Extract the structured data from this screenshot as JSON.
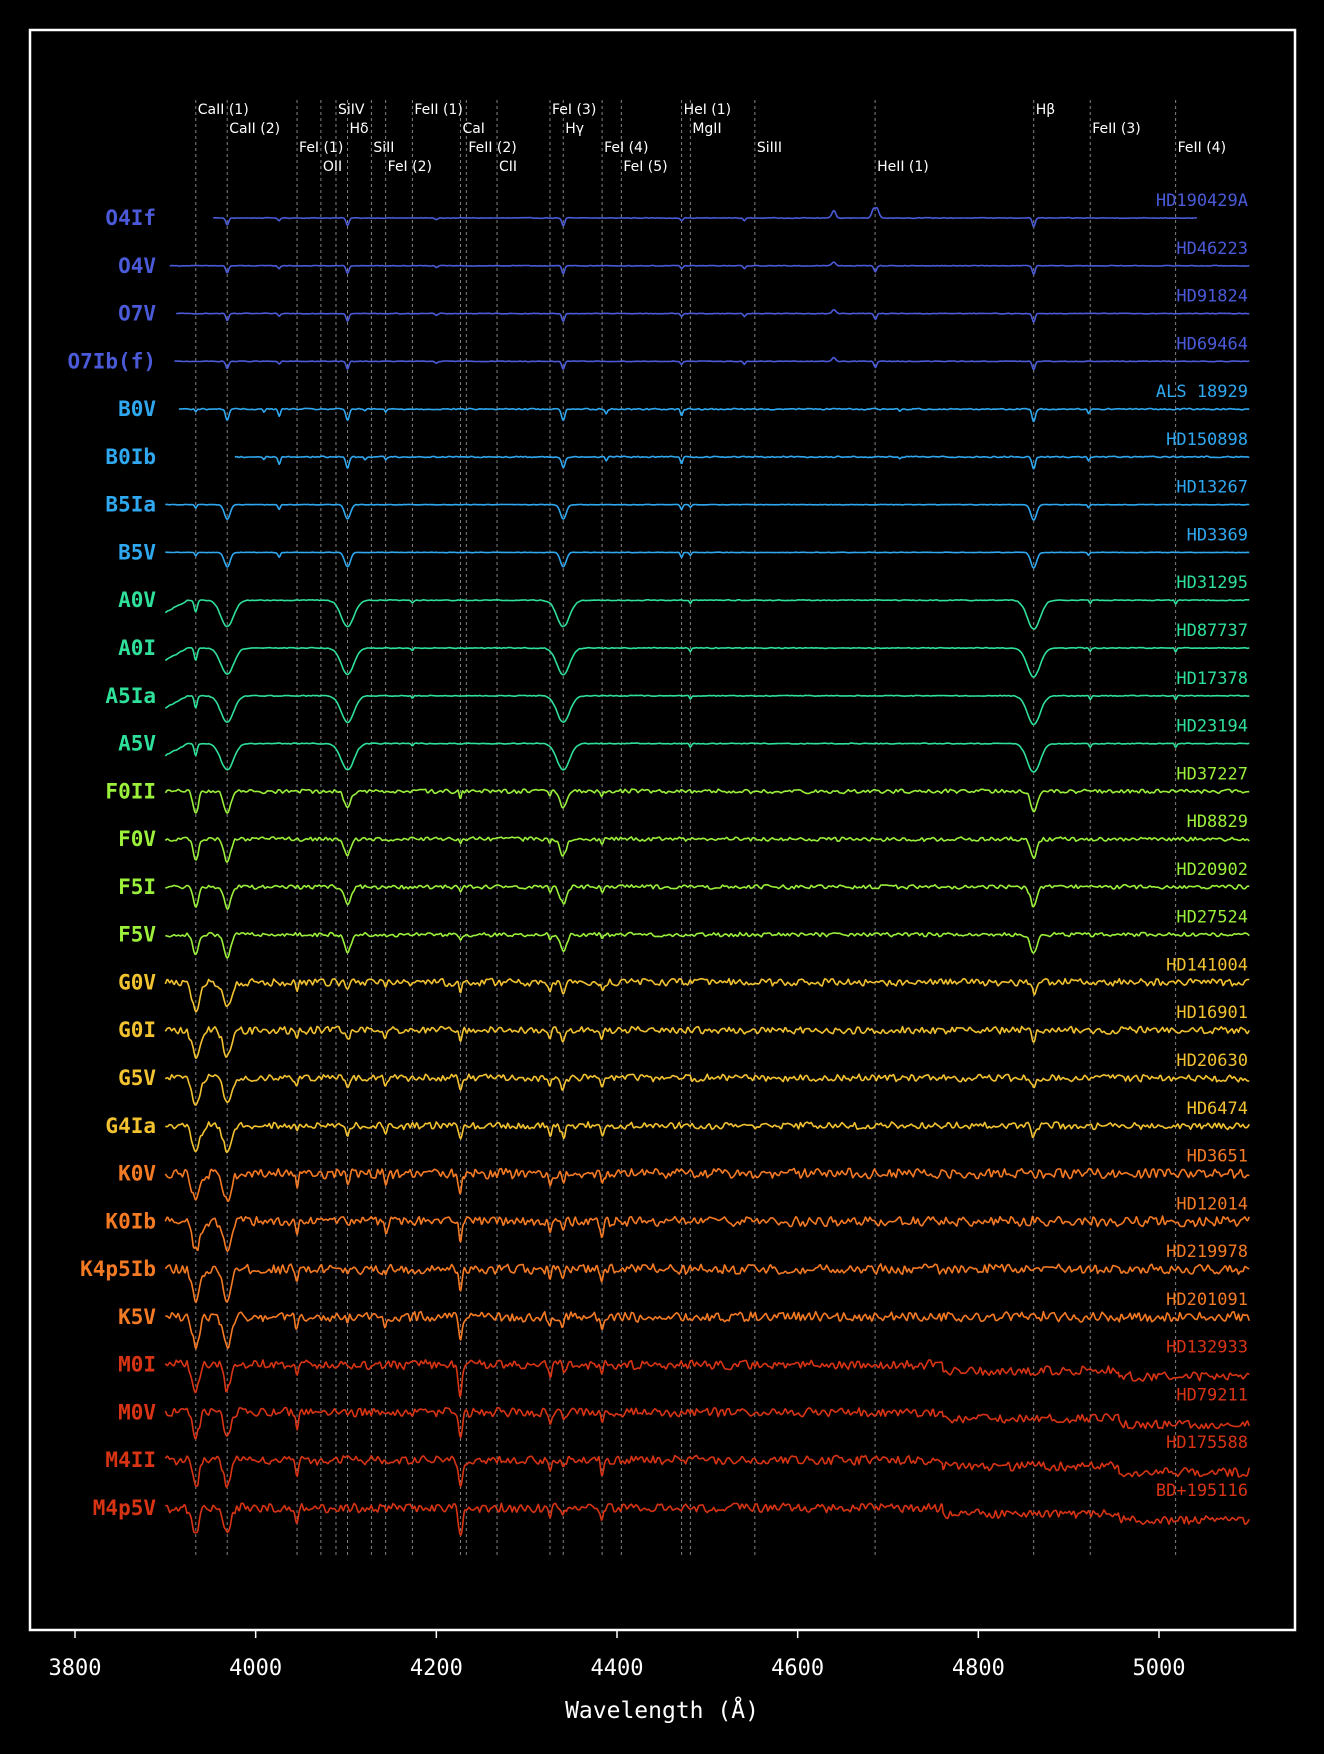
{
  "chart_data": {
    "type": "line",
    "title": "",
    "xlabel": "Wavelength (Å)",
    "ylabel": "",
    "xlim": [
      3760,
      5150
    ],
    "xticks": [
      3800,
      4000,
      4200,
      4400,
      4600,
      4800,
      5000
    ],
    "grid": false,
    "lines": [
      {
        "label": "CaII (1)",
        "x": 3933.7,
        "tier": 0
      },
      {
        "label": "CaII (2)",
        "x": 3968.5,
        "tier": 1
      },
      {
        "label": "FeI (1)",
        "x": 4045.8,
        "tier": 2
      },
      {
        "label": "OII",
        "x": 4072.2,
        "tier": 3
      },
      {
        "label": "SiIV",
        "x": 4088.9,
        "tier": 0
      },
      {
        "label": "Hδ",
        "x": 4101.7,
        "tier": 1
      },
      {
        "label": "SiII",
        "x": 4128.1,
        "tier": 2
      },
      {
        "label": "FeI (2)",
        "x": 4143.9,
        "tier": 3
      },
      {
        "label": "FeII (1)",
        "x": 4173.5,
        "tier": 0
      },
      {
        "label": "CaI",
        "x": 4226.7,
        "tier": 1
      },
      {
        "label": "FeII (2)",
        "x": 4233.2,
        "tier": 2
      },
      {
        "label": "CII",
        "x": 4267.2,
        "tier": 3
      },
      {
        "label": "FeI (3)",
        "x": 4325.8,
        "tier": 0
      },
      {
        "label": "Hγ",
        "x": 4340.5,
        "tier": 1
      },
      {
        "label": "FeI (4)",
        "x": 4383.5,
        "tier": 2
      },
      {
        "label": "FeI (5)",
        "x": 4404.8,
        "tier": 3
      },
      {
        "label": "HeI (1)",
        "x": 4471.5,
        "tier": 0
      },
      {
        "label": "MgII",
        "x": 4481.2,
        "tier": 1
      },
      {
        "label": "SiIII",
        "x": 4552.6,
        "tier": 2
      },
      {
        "label": "HeII (1)",
        "x": 4685.7,
        "tier": 3
      },
      {
        "label": "Hβ",
        "x": 4861.3,
        "tier": 0
      },
      {
        "label": "FeII (3)",
        "x": 4923.9,
        "tier": 1
      },
      {
        "label": "FeII (4)",
        "x": 5018.4,
        "tier": 2
      }
    ],
    "series": [
      {
        "type": "O4If",
        "star": "HD190429A",
        "color": "#4a5ad8",
        "start": 3953,
        "end": 5042,
        "profile": "O"
      },
      {
        "type": "O4V",
        "star": "HD46223",
        "color": "#4a5ad8",
        "start": 3905,
        "end": 5100,
        "profile": "O"
      },
      {
        "type": "O7V",
        "star": "HD91824",
        "color": "#4a5ad8",
        "start": 3912,
        "end": 5100,
        "profile": "O"
      },
      {
        "type": "O7Ib(f)",
        "star": "HD69464",
        "color": "#4a5ad8",
        "start": 3910,
        "end": 5100,
        "profile": "O"
      },
      {
        "type": "B0V",
        "star": "ALS 18929",
        "color": "#2fa8f0",
        "start": 3915,
        "end": 5100,
        "profile": "B0"
      },
      {
        "type": "B0Ib",
        "star": "HD150898",
        "color": "#2fa8f0",
        "start": 3977,
        "end": 5100,
        "profile": "B0"
      },
      {
        "type": "B5Ia",
        "star": "HD13267",
        "color": "#2fa8f0",
        "start": 3900,
        "end": 5100,
        "profile": "B5"
      },
      {
        "type": "B5V",
        "star": "HD3369",
        "color": "#2fa8f0",
        "start": 3900,
        "end": 5100,
        "profile": "B5"
      },
      {
        "type": "A0V",
        "star": "HD31295",
        "color": "#2fe09a",
        "start": 3900,
        "end": 5100,
        "profile": "A"
      },
      {
        "type": "A0I",
        "star": "HD87737",
        "color": "#2fe09a",
        "start": 3900,
        "end": 5100,
        "profile": "A"
      },
      {
        "type": "A5Ia",
        "star": "HD17378",
        "color": "#2fe09a",
        "start": 3900,
        "end": 5100,
        "profile": "A"
      },
      {
        "type": "A5V",
        "star": "HD23194",
        "color": "#2fe09a",
        "start": 3900,
        "end": 5100,
        "profile": "A"
      },
      {
        "type": "F0II",
        "star": "HD37227",
        "color": "#9af03a",
        "start": 3900,
        "end": 5100,
        "profile": "F"
      },
      {
        "type": "F0V",
        "star": "HD8829",
        "color": "#9af03a",
        "start": 3900,
        "end": 5100,
        "profile": "F"
      },
      {
        "type": "F5I",
        "star": "HD20902",
        "color": "#9af03a",
        "start": 3900,
        "end": 5100,
        "profile": "F"
      },
      {
        "type": "F5V",
        "star": "HD27524",
        "color": "#9af03a",
        "start": 3900,
        "end": 5100,
        "profile": "F"
      },
      {
        "type": "G0V",
        "star": "HD141004",
        "color": "#f2c230",
        "start": 3900,
        "end": 5100,
        "profile": "G"
      },
      {
        "type": "G0I",
        "star": "HD16901",
        "color": "#f2c230",
        "start": 3900,
        "end": 5100,
        "profile": "G"
      },
      {
        "type": "G5V",
        "star": "HD20630",
        "color": "#f2c230",
        "start": 3900,
        "end": 5100,
        "profile": "G"
      },
      {
        "type": "G4Ia",
        "star": "HD6474",
        "color": "#f2c230",
        "start": 3900,
        "end": 5100,
        "profile": "G"
      },
      {
        "type": "K0V",
        "star": "HD3651",
        "color": "#f57a24",
        "start": 3900,
        "end": 5100,
        "profile": "K"
      },
      {
        "type": "K0Ib",
        "star": "HD12014",
        "color": "#f57a24",
        "start": 3900,
        "end": 5100,
        "profile": "K"
      },
      {
        "type": "K4p5Ib",
        "star": "HD219978",
        "color": "#f57a24",
        "start": 3900,
        "end": 5100,
        "profile": "K"
      },
      {
        "type": "K5V",
        "star": "HD201091",
        "color": "#f57a24",
        "start": 3900,
        "end": 5100,
        "profile": "K"
      },
      {
        "type": "M0I",
        "star": "HD132933",
        "color": "#d83414",
        "start": 3900,
        "end": 5100,
        "profile": "M"
      },
      {
        "type": "M0V",
        "star": "HD79211",
        "color": "#d83414",
        "start": 3900,
        "end": 5100,
        "profile": "M"
      },
      {
        "type": "M4II",
        "star": "HD175588",
        "color": "#d83414",
        "start": 3900,
        "end": 5100,
        "profile": "M"
      },
      {
        "type": "M4p5V",
        "star": "BD+195116",
        "color": "#d83414",
        "start": 3900,
        "end": 5100,
        "profile": "M"
      }
    ]
  }
}
